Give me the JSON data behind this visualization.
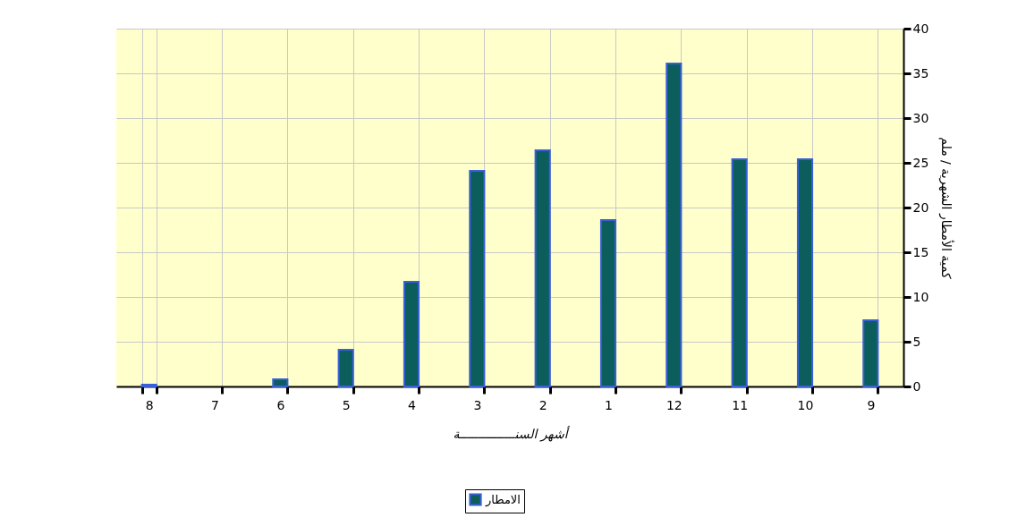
{
  "chart_data": {
    "type": "bar",
    "categories": [
      "8",
      "7",
      "6",
      "5",
      "4",
      "3",
      "2",
      "1",
      "12",
      "11",
      "10",
      "9"
    ],
    "series": [
      {
        "name": "الامطار",
        "color": "#0b5e5c",
        "values": [
          0.2,
          0,
          0.8,
          4.1,
          11.7,
          24.1,
          26.4,
          18.6,
          36.1,
          25.4,
          25.4,
          7.4
        ]
      }
    ],
    "xlabel": "أشهر السنـــــــــــــــة",
    "ylabel": "كمية الأمطار الشهرية / ملم",
    "ylim": [
      0,
      40
    ],
    "yticks": [
      0,
      5,
      10,
      15,
      20,
      25,
      30,
      35,
      40
    ],
    "grid": true,
    "legend": "bottom"
  }
}
